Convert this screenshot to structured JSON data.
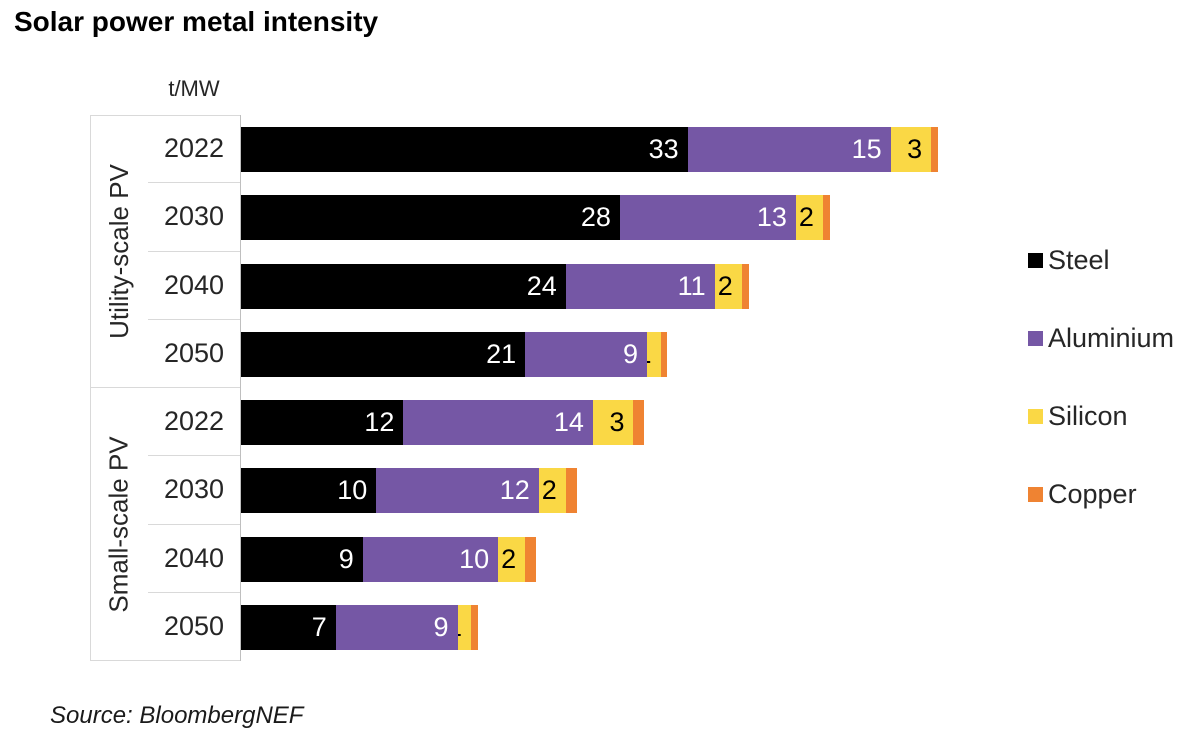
{
  "source_note": "Source: BloombergNEF",
  "chart_data": {
    "type": "bar",
    "orientation": "horizontal-stacked",
    "title": "Solar power metal intensity",
    "value_unit": "t/MW",
    "xlabel": "",
    "ylabel": "",
    "grid": "off",
    "legend_position": "right",
    "legend": [
      "Steel",
      "Aluminium",
      "Silicon",
      "Copper"
    ],
    "groups": [
      "Utility-scale PV",
      "Small-scale PV"
    ],
    "categories": [
      {
        "group": "Utility-scale PV",
        "year": "2022"
      },
      {
        "group": "Utility-scale PV",
        "year": "2030"
      },
      {
        "group": "Utility-scale PV",
        "year": "2040"
      },
      {
        "group": "Utility-scale PV",
        "year": "2050"
      },
      {
        "group": "Small-scale PV",
        "year": "2022"
      },
      {
        "group": "Small-scale PV",
        "year": "2030"
      },
      {
        "group": "Small-scale PV",
        "year": "2040"
      },
      {
        "group": "Small-scale PV",
        "year": "2050"
      }
    ],
    "series": [
      {
        "name": "Steel",
        "color": "#000000",
        "label_color": "#ffffff",
        "values": [
          33,
          28,
          24,
          21,
          12,
          10,
          9,
          7
        ]
      },
      {
        "name": "Aluminium",
        "color": "#7557A5",
        "label_color": "#ffffff",
        "values": [
          15,
          13,
          11,
          9,
          14,
          12,
          10,
          9
        ]
      },
      {
        "name": "Silicon",
        "color": "#FAD845",
        "label_color": "#000000",
        "values": [
          3,
          2,
          2,
          1,
          3,
          2,
          2,
          1
        ]
      },
      {
        "name": "Copper",
        "color": "#EF8332",
        "label_color": "#000000",
        "values": [
          0.5,
          0.5,
          0.5,
          0.5,
          0.8,
          0.8,
          0.8,
          0.5
        ]
      }
    ],
    "label_min_value_shown": 1,
    "xlim": [
      0,
      51.5
    ]
  }
}
